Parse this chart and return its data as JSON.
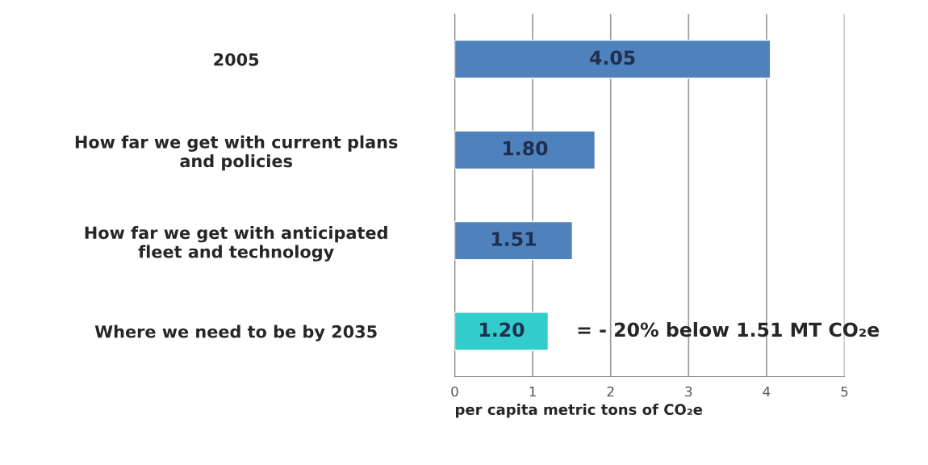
{
  "chart_data": {
    "type": "bar",
    "orientation": "horizontal",
    "categories": [
      "2005",
      "How far we get with current plans\nand policies",
      "How far we get with anticipated\nfleet and technology",
      "Where we need to be by 2035"
    ],
    "values": [
      4.05,
      1.8,
      1.51,
      1.2
    ],
    "colors": [
      "#4f81bd",
      "#4f81bd",
      "#4f81bd",
      "#33cccc"
    ],
    "value_labels": [
      "4.05",
      "1.80",
      "1.51",
      "1.20"
    ],
    "xlabel": "per capita metric tons of CO₂e",
    "xlim": [
      0,
      5
    ],
    "xticks": [
      0,
      1,
      2,
      3,
      4,
      5
    ],
    "grid": "x",
    "annotations": [
      {
        "text": "= - 20% below 1.51 MT CO₂e",
        "x": 1.2,
        "y": "Where we need to be by 2035"
      }
    ]
  }
}
